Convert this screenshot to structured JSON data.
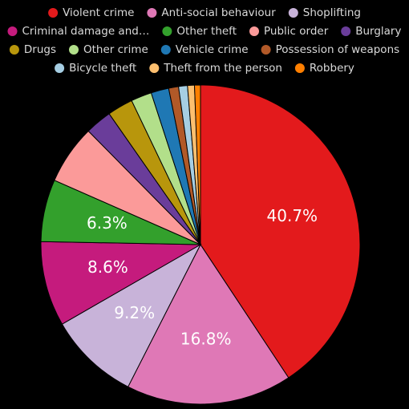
{
  "chart_data": {
    "type": "pie",
    "legend_position": "top",
    "slices": [
      {
        "name": "Violent crime",
        "value": 40.7,
        "label": "40.7%",
        "color": "#e31a1c"
      },
      {
        "name": "Anti-social behaviour",
        "value": 16.8,
        "label": "16.8%",
        "color": "#df78b6"
      },
      {
        "name": "Shoplifting",
        "value": 9.2,
        "label": "9.2%",
        "color": "#c8b3d9"
      },
      {
        "name": "Criminal damage and…",
        "value": 8.6,
        "label": "8.6%",
        "color": "#c51b7d"
      },
      {
        "name": "Other theft",
        "value": 6.3,
        "label": "6.3%",
        "color": "#33a02c"
      },
      {
        "name": "Public order",
        "value": 6.0,
        "label": "",
        "color": "#fb9a99"
      },
      {
        "name": "Burglary",
        "value": 2.7,
        "label": "",
        "color": "#6a3d9a"
      },
      {
        "name": "Drugs",
        "value": 2.6,
        "label": "",
        "color": "#b8960c"
      },
      {
        "name": "Other crime",
        "value": 2.1,
        "label": "",
        "color": "#b2df8a"
      },
      {
        "name": "Vehicle crime",
        "value": 1.8,
        "label": "",
        "color": "#1f78b4"
      },
      {
        "name": "Possession of weapons",
        "value": 1.0,
        "label": "",
        "color": "#b15928"
      },
      {
        "name": "Bicycle theft",
        "value": 0.9,
        "label": "",
        "color": "#a6cee3"
      },
      {
        "name": "Theft from the person",
        "value": 0.7,
        "label": "",
        "color": "#fdbf6f"
      },
      {
        "name": "Robbery",
        "value": 0.6,
        "label": "",
        "color": "#ff7f00"
      }
    ]
  }
}
